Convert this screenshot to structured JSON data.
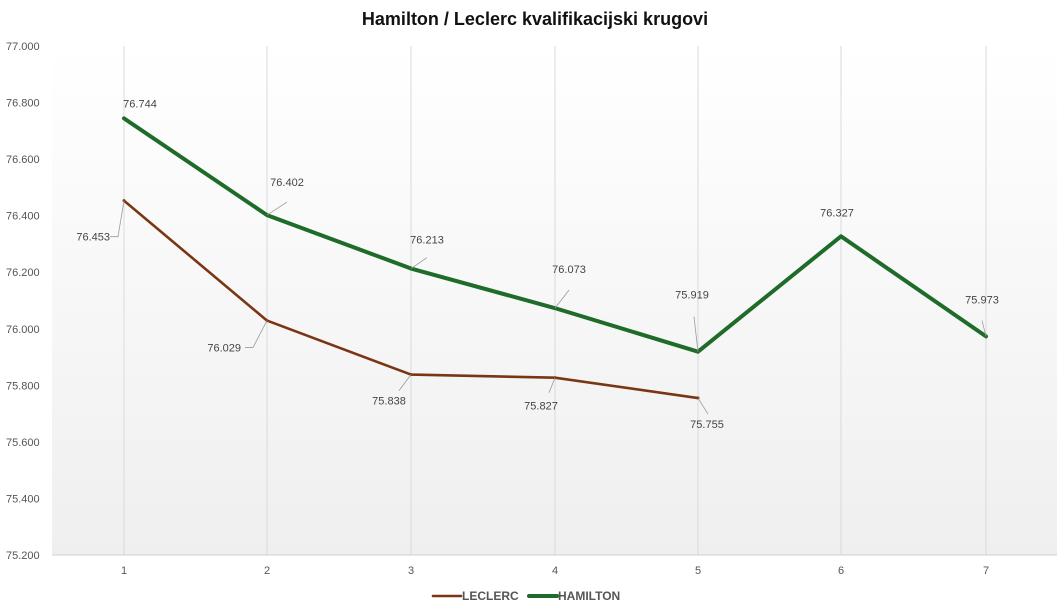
{
  "chart_data": {
    "type": "line",
    "title": "Hamilton / Leclerc kvalifikacijski krugovi",
    "xlabel": "",
    "ylabel": "",
    "x": [
      1,
      2,
      3,
      4,
      5,
      6,
      7
    ],
    "x_tick_labels": [
      "1",
      "2",
      "3",
      "4",
      "5",
      "6",
      "7"
    ],
    "ylim": [
      75.2,
      77.0
    ],
    "y_tick_labels": [
      "75.200",
      "75.400",
      "75.600",
      "75.800",
      "76.000",
      "76.200",
      "76.400",
      "76.600",
      "76.800",
      "77.000"
    ],
    "y_ticks": [
      75.2,
      75.4,
      75.6,
      75.8,
      76.0,
      76.2,
      76.4,
      76.6,
      76.8,
      77.0
    ],
    "grid": "vertical",
    "legend_position": "bottom",
    "series": [
      {
        "name": "LECLERC",
        "color": "#7a3614",
        "values": [
          76.453,
          76.029,
          75.838,
          75.827,
          75.755,
          null,
          null
        ],
        "data_labels": [
          "76.453",
          "76.029",
          "75.838",
          "75.827",
          "75.755",
          "",
          ""
        ]
      },
      {
        "name": "HAMILTON",
        "color": "#1f6b2a",
        "values": [
          76.744,
          76.402,
          76.213,
          76.073,
          75.919,
          76.327,
          75.973
        ],
        "data_labels": [
          "76.744",
          "76.402",
          "76.213",
          "76.073",
          "75.919",
          "76.327",
          "75.973"
        ]
      }
    ]
  }
}
